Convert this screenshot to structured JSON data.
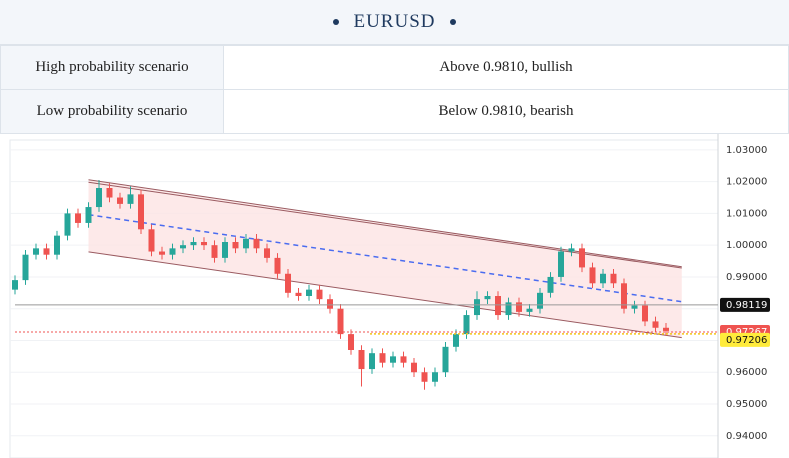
{
  "header": {
    "title": "EURUSD"
  },
  "table": {
    "rows": [
      [
        "High probability scenario",
        "Above 0.9810, bullish"
      ],
      [
        "Low probability scenario",
        "Below 0.9810, bearish"
      ]
    ]
  },
  "chart_data": {
    "type": "candlestick",
    "open": [
      0.986,
      0.989,
      0.997,
      0.999,
      0.997,
      1.003,
      1.01,
      1.007,
      1.012,
      1.018,
      1.015,
      1.013,
      1.016,
      1.005,
      0.998,
      0.997,
      0.999,
      1.0,
      1.001,
      1.0,
      0.996,
      1.001,
      0.999,
      1.002,
      0.999,
      0.996,
      0.991,
      0.985,
      0.984,
      0.986,
      0.983,
      0.98,
      0.972,
      0.967,
      0.961,
      0.966,
      0.963,
      0.965,
      0.963,
      0.96,
      0.957,
      0.96,
      0.968,
      0.972,
      0.978,
      0.983,
      0.984,
      0.978,
      0.982,
      0.979,
      0.98,
      0.985,
      0.99,
      0.998,
      0.999,
      0.993,
      0.988,
      0.991,
      0.988,
      0.98,
      0.981,
      0.976,
      0.974
    ],
    "high": [
      0.9905,
      0.9985,
      1.0005,
      1.0005,
      1.0045,
      1.0115,
      1.0115,
      1.0135,
      1.0205,
      1.0195,
      1.0165,
      1.0185,
      1.0175,
      1.0065,
      0.9995,
      1.0005,
      1.0015,
      1.0025,
      1.0025,
      1.0015,
      1.0025,
      1.0025,
      1.0035,
      1.0035,
      1.0005,
      0.9975,
      0.9925,
      0.9865,
      0.9875,
      0.9875,
      0.9845,
      0.9815,
      0.9735,
      0.9685,
      0.9675,
      0.9675,
      0.9665,
      0.9665,
      0.9645,
      0.9615,
      0.9615,
      0.9695,
      0.9735,
      0.9795,
      0.9855,
      0.9855,
      0.9855,
      0.9835,
      0.9835,
      0.9815,
      0.9865,
      0.9915,
      0.9995,
      1.0005,
      1.0005,
      0.9945,
      0.9925,
      0.9925,
      0.9895,
      0.9825,
      0.9825,
      0.9775,
      0.9755
    ],
    "low": [
      0.9845,
      0.9875,
      0.9955,
      0.9955,
      0.9955,
      1.0015,
      1.0055,
      1.0055,
      1.0105,
      1.0135,
      1.0115,
      1.0115,
      1.0035,
      0.9965,
      0.9955,
      0.9955,
      0.9975,
      0.9985,
      0.9985,
      0.9945,
      0.9945,
      0.9975,
      0.9975,
      0.9975,
      0.9945,
      0.9895,
      0.9835,
      0.9825,
      0.9825,
      0.9815,
      0.9785,
      0.9705,
      0.9655,
      0.9555,
      0.9595,
      0.9615,
      0.9615,
      0.9615,
      0.9585,
      0.9545,
      0.9555,
      0.9585,
      0.9665,
      0.9705,
      0.9765,
      0.9815,
      0.9765,
      0.9765,
      0.9775,
      0.9775,
      0.9785,
      0.9835,
      0.9885,
      0.9965,
      0.9915,
      0.9865,
      0.9865,
      0.9865,
      0.9785,
      0.9785,
      0.9745,
      0.9725,
      0.9715
    ],
    "close": [
      0.989,
      0.997,
      0.999,
      0.997,
      1.003,
      1.01,
      1.007,
      1.012,
      1.018,
      1.015,
      1.013,
      1.016,
      1.005,
      0.998,
      0.997,
      0.999,
      1.0,
      1.001,
      1.0,
      0.996,
      1.001,
      0.999,
      1.002,
      0.999,
      0.996,
      0.991,
      0.985,
      0.984,
      0.986,
      0.983,
      0.98,
      0.972,
      0.967,
      0.961,
      0.966,
      0.963,
      0.965,
      0.963,
      0.96,
      0.957,
      0.96,
      0.968,
      0.972,
      0.978,
      0.983,
      0.984,
      0.978,
      0.982,
      0.979,
      0.98,
      0.985,
      0.99,
      0.998,
      0.999,
      0.993,
      0.988,
      0.991,
      0.988,
      0.98,
      0.981,
      0.976,
      0.974,
      0.973
    ],
    "up_color": "#26a69a",
    "down_color": "#ef5350",
    "ylim": [
      0.933,
      1.035
    ],
    "yticks": [
      {
        "value": 1.03,
        "label": "1.03000"
      },
      {
        "value": 1.02,
        "label": "1.02000"
      },
      {
        "value": 1.01,
        "label": "1.01000"
      },
      {
        "value": 1.0,
        "label": "1.00000"
      },
      {
        "value": 0.99,
        "label": "0.99000"
      },
      {
        "value": 0.98,
        "label": "0.98000"
      },
      {
        "value": 0.97,
        "label": "0.97000"
      },
      {
        "value": 0.96,
        "label": "0.96000"
      },
      {
        "value": 0.95,
        "label": "0.95000"
      },
      {
        "value": 0.94,
        "label": "0.94000"
      }
    ],
    "grid": true,
    "channel": {
      "x": [
        7,
        63.5
      ],
      "upper": [
        1.0206,
        0.9932
      ],
      "upper_inner": [
        1.0198,
        0.9928
      ],
      "middle": [
        1.0096,
        0.9822
      ],
      "lower": [
        0.9979,
        0.9709
      ],
      "fill": "#fde4e4",
      "line_color": "#9a5a60",
      "middle_color": "#4a6cf0"
    },
    "levels": [
      {
        "value": 0.98119,
        "color": "#111111",
        "text_color": "#ffffff",
        "line": "#999999"
      },
      {
        "value": 0.97267,
        "color": "#ef5350",
        "text_color": "#ffffff",
        "line": "#ef5350"
      },
      {
        "value": 0.97206,
        "color": "#ffeb3b",
        "text_color": "#111111",
        "line": "#f5c518"
      }
    ]
  }
}
